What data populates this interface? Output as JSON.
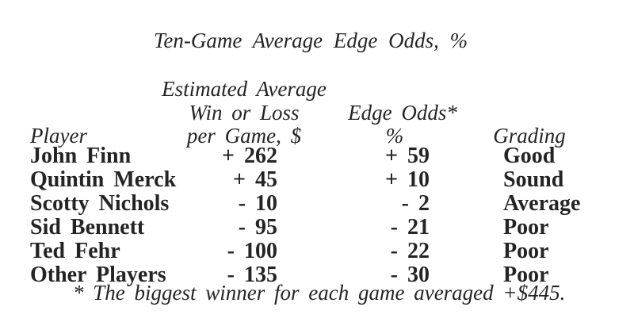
{
  "title": "Ten-Game Average Edge Odds, %",
  "colors": {
    "text": "#242424",
    "background": "#ffffff"
  },
  "table": {
    "headers": {
      "player": "Player",
      "win_loss_line1": "Estimated Average",
      "win_loss_line2": "Win or Loss",
      "win_loss_line3": "per Game, $",
      "edge_odds_line1": "Edge Odds*",
      "edge_odds_line2": "%",
      "grading": "Grading"
    },
    "rows": [
      {
        "player": "John Finn",
        "win_loss_per_game": "+ 262",
        "edge_odds_pct": "+ 59",
        "grading": "Good"
      },
      {
        "player": "Quintin Merck",
        "win_loss_per_game": "+ 45",
        "edge_odds_pct": "+ 10",
        "grading": "Sound"
      },
      {
        "player": "Scotty Nichols",
        "win_loss_per_game": "- 10",
        "edge_odds_pct": "- 2",
        "grading": "Average"
      },
      {
        "player": "Sid Bennett",
        "win_loss_per_game": "- 95",
        "edge_odds_pct": "- 21",
        "grading": "Poor"
      },
      {
        "player": "Ted Fehr",
        "win_loss_per_game": "- 100",
        "edge_odds_pct": "- 22",
        "grading": "Poor"
      },
      {
        "player": "Other Players",
        "win_loss_per_game": "- 135",
        "edge_odds_pct": "- 30",
        "grading": "Poor"
      }
    ]
  },
  "footnote": "* The biggest winner for each game averaged +$445."
}
